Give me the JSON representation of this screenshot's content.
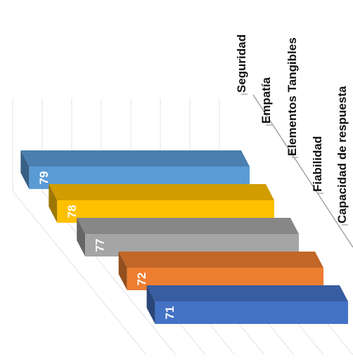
{
  "chart_data": {
    "type": "bar",
    "orientation": "3d-rotated",
    "categories": [
      "Seguridad",
      "Empatía",
      "Elementos Tangibles",
      "Fiabilidad",
      "Capacidad de respuesta"
    ],
    "values": [
      79,
      78,
      77,
      72,
      71
    ],
    "data_labels": [
      "79",
      "78",
      "77",
      "72",
      "71"
    ],
    "colors": [
      "#5b9bd5",
      "#ffc000",
      "#a5a5a5",
      "#ed7d31",
      "#4472c4"
    ],
    "grid": true,
    "legend": "none"
  }
}
